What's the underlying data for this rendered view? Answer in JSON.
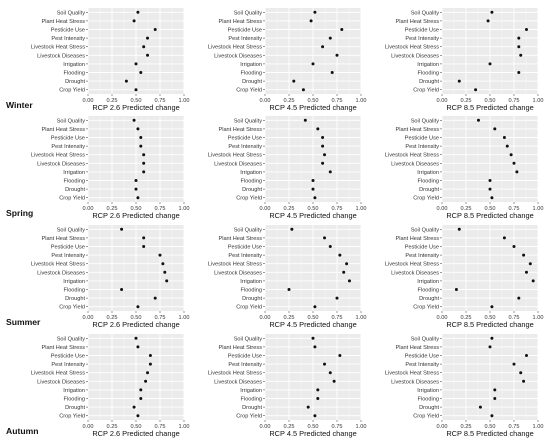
{
  "chart_data": {
    "type": "scatter",
    "categories": [
      "Soil Quality",
      "Plant Heat Stress",
      "Pesticide Use",
      "Pest Intensity",
      "Livestock Heat Stress",
      "Livestock Diseases",
      "Irrigation",
      "Flooding",
      "Drought",
      "Crop Yield"
    ],
    "xlim": [
      0,
      1
    ],
    "xticks": [
      "0.00",
      "0.25",
      "0.50",
      "0.75",
      "1.00"
    ],
    "xlabels": [
      "RCP 2.6 Predicted change",
      "RCP 4.5 Predicted change",
      "RCP 8.5 Predicted change"
    ],
    "grid": true,
    "panels": [
      {
        "season": "Winter",
        "scenarios": [
          {
            "values": [
              0.52,
              0.48,
              0.7,
              0.62,
              0.58,
              0.62,
              0.5,
              0.55,
              0.4,
              0.5
            ]
          },
          {
            "values": [
              0.52,
              0.48,
              0.8,
              0.68,
              0.6,
              0.75,
              0.5,
              0.7,
              0.3,
              0.4
            ]
          },
          {
            "values": [
              0.52,
              0.48,
              0.88,
              0.8,
              0.8,
              0.82,
              0.5,
              0.8,
              0.18,
              0.35
            ]
          }
        ]
      },
      {
        "season": "Spring",
        "scenarios": [
          {
            "values": [
              0.48,
              0.52,
              0.55,
              0.55,
              0.58,
              0.58,
              0.58,
              0.5,
              0.5,
              0.52
            ]
          },
          {
            "values": [
              0.42,
              0.55,
              0.6,
              0.6,
              0.62,
              0.6,
              0.68,
              0.5,
              0.5,
              0.52
            ]
          },
          {
            "values": [
              0.38,
              0.55,
              0.65,
              0.68,
              0.72,
              0.75,
              0.78,
              0.5,
              0.5,
              0.52
            ]
          }
        ]
      },
      {
        "season": "Summer",
        "scenarios": [
          {
            "values": [
              0.35,
              0.58,
              0.58,
              0.75,
              0.78,
              0.8,
              0.82,
              0.35,
              0.7,
              0.52
            ]
          },
          {
            "values": [
              0.28,
              0.62,
              0.68,
              0.78,
              0.85,
              0.82,
              0.88,
              0.25,
              0.75,
              0.52
            ]
          },
          {
            "values": [
              0.18,
              0.65,
              0.75,
              0.85,
              0.92,
              0.88,
              0.95,
              0.15,
              0.8,
              0.52
            ]
          }
        ]
      },
      {
        "season": "Autumn",
        "scenarios": [
          {
            "values": [
              0.5,
              0.52,
              0.65,
              0.65,
              0.62,
              0.6,
              0.55,
              0.55,
              0.48,
              0.52
            ]
          },
          {
            "values": [
              0.5,
              0.52,
              0.78,
              0.62,
              0.68,
              0.72,
              0.55,
              0.55,
              0.45,
              0.52
            ]
          },
          {
            "values": [
              0.52,
              0.5,
              0.88,
              0.75,
              0.82,
              0.85,
              0.55,
              0.55,
              0.4,
              0.52
            ]
          }
        ]
      }
    ]
  }
}
